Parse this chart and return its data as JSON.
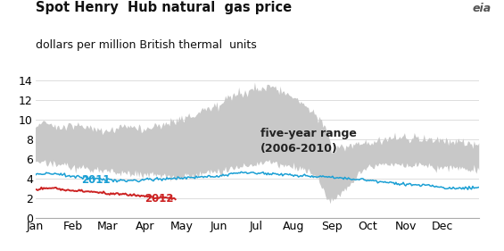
{
  "title_line1": "Spot Henry  Hub natural  gas price",
  "title_line2": "dollars per million British thermal  units",
  "xlim": [
    0,
    364
  ],
  "ylim": [
    0,
    14
  ],
  "yticks": [
    0,
    2,
    4,
    6,
    8,
    10,
    12,
    14
  ],
  "month_labels": [
    "Jan",
    "Feb",
    "Mar",
    "Apr",
    "May",
    "Jun",
    "Jul",
    "Aug",
    "Sep",
    "Oct",
    "Nov",
    "Dec"
  ],
  "month_positions": [
    0,
    31,
    59,
    90,
    120,
    151,
    181,
    212,
    243,
    273,
    304,
    334
  ],
  "range_label": "five-year range\n(2006-2010)",
  "label_2011": "2011",
  "label_2012": "2012",
  "gray_color": "#c8c8c8",
  "line2011_color": "#1a9fd4",
  "line2012_color": "#cc2222",
  "background_color": "#ffffff",
  "title_fontsize": 10.5,
  "subtitle_fontsize": 9,
  "tick_fontsize": 9
}
